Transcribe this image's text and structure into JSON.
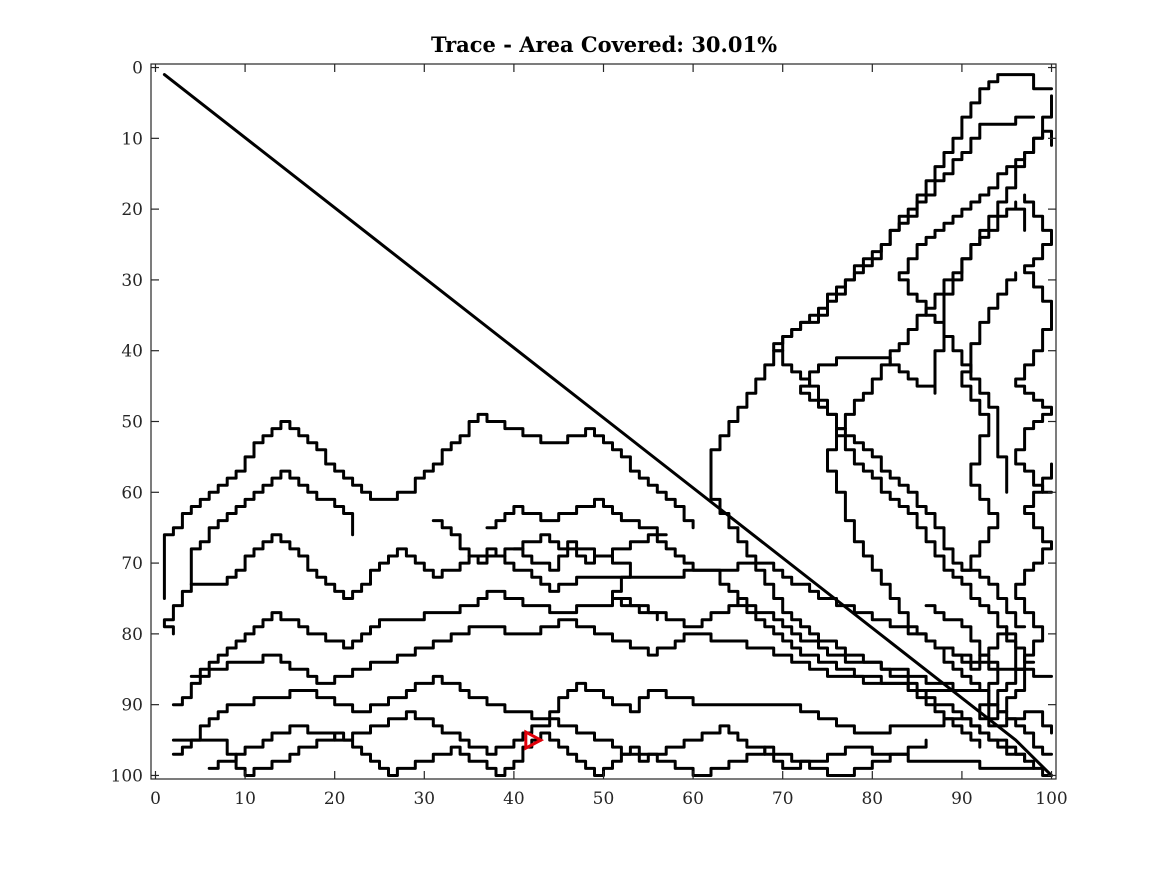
{
  "chart_data": {
    "type": "line",
    "title": "Trace - Area Covered: 30.01%",
    "xlabel": "",
    "ylabel": "",
    "xlim": [
      -0.5,
      100.5
    ],
    "ylim": [
      -0.5,
      100.5
    ],
    "y_reversed": true,
    "grid": false,
    "x_ticks": [
      0,
      10,
      20,
      30,
      40,
      50,
      60,
      70,
      80,
      90,
      100
    ],
    "y_ticks": [
      0,
      10,
      20,
      30,
      40,
      50,
      60,
      70,
      80,
      90,
      100
    ],
    "colors": {
      "trace": "#000000",
      "marker": "#e0000a",
      "axis": "#262626"
    },
    "series": [
      {
        "style": "trace",
        "x": [
          1,
          96,
          100
        ],
        "y": [
          1,
          95,
          100
        ]
      },
      {
        "style": "trace",
        "x": [
          100,
          92,
          85,
          74,
          70,
          62,
          62,
          70,
          80,
          88,
          92,
          94,
          97,
          98,
          100
        ],
        "y": [
          100,
          93,
          87,
          80,
          76,
          60,
          54,
          38,
          27,
          13,
          3,
          1,
          1,
          3,
          3
        ]
      },
      {
        "style": "trace",
        "x": [
          100,
          96,
          90,
          85,
          79,
          75,
          76,
          86,
          93,
          99,
          100
        ],
        "y": [
          97,
          92,
          85,
          79,
          68,
          55,
          51,
          34,
          22,
          8,
          4
        ]
      },
      {
        "style": "trace",
        "x": [
          98,
          93,
          88,
          84,
          78,
          74,
          70,
          69,
          71,
          74,
          79,
          84,
          90,
          92,
          98
        ],
        "y": [
          84,
          76,
          70,
          62,
          55,
          45,
          41,
          39,
          37,
          35,
          27,
          21,
          12,
          8,
          7
        ]
      },
      {
        "style": "trace",
        "x": [
          97,
          93,
          89,
          87,
          83,
          79,
          72,
          73,
          76,
          81,
          84,
          87,
          88,
          91,
          96,
          97
        ],
        "y": [
          79,
          72,
          69,
          63,
          58,
          53,
          45,
          43,
          41,
          41,
          44,
          46,
          33,
          25,
          19,
          23
        ]
      },
      {
        "style": "trace",
        "x": [
          95,
          94,
          90,
          87,
          83,
          86,
          91,
          96,
          99,
          100
        ],
        "y": [
          60,
          49,
          41,
          35,
          29,
          24,
          19,
          13,
          9,
          11
        ]
      },
      {
        "style": "trace",
        "x": [
          100,
          96,
          97,
          100,
          96,
          99,
          100,
          97,
          100,
          97
        ],
        "y": [
          60,
          55,
          51,
          48,
          44,
          39,
          33,
          28,
          24,
          18
        ]
      },
      {
        "style": "trace",
        "x": [
          90,
          94,
          91,
          93,
          90,
          92,
          96
        ],
        "y": [
          71,
          64,
          57,
          50,
          44,
          36,
          29
        ]
      },
      {
        "style": "trace",
        "x": [
          1,
          1,
          4,
          9,
          12,
          14,
          24,
          28,
          36,
          44,
          48,
          58,
          60
        ],
        "y": [
          75,
          66,
          62,
          57,
          52,
          50,
          61,
          60,
          49,
          53,
          51,
          62,
          65
        ]
      },
      {
        "style": "trace",
        "x": [
          4,
          4,
          8,
          11,
          14,
          22,
          22
        ],
        "y": [
          73,
          68,
          63,
          60,
          57,
          64,
          66
        ]
      },
      {
        "style": "trace",
        "x": [
          2,
          1,
          4,
          7,
          13,
          21,
          27,
          31,
          37,
          44,
          47,
          55,
          62,
          66,
          71,
          76,
          85,
          93
        ],
        "y": [
          80,
          78,
          73,
          73,
          66,
          75,
          68,
          72,
          68,
          74,
          72,
          72,
          71,
          77,
          82,
          85,
          88,
          88
        ]
      },
      {
        "style": "trace",
        "x": [
          4,
          10,
          13,
          21,
          25,
          33,
          37,
          45,
          52,
          60,
          65,
          75,
          79,
          90
        ],
        "y": [
          86,
          80,
          77,
          82,
          78,
          77,
          74,
          77,
          75,
          79,
          75,
          83,
          84,
          88
        ]
      },
      {
        "style": "trace",
        "x": [
          2,
          6,
          13,
          18,
          25,
          36,
          41,
          46,
          55,
          59,
          68,
          75,
          83,
          92
        ],
        "y": [
          90,
          85,
          83,
          87,
          84,
          79,
          80,
          78,
          83,
          80,
          82,
          86,
          87,
          96
        ]
      },
      {
        "style": "trace",
        "x": [
          2,
          8,
          16,
          23,
          31,
          37,
          43,
          47,
          53,
          55,
          61,
          70,
          79,
          90,
          97
        ],
        "y": [
          97,
          90,
          88,
          91,
          86,
          90,
          92,
          87,
          91,
          88,
          90,
          90,
          94,
          92,
          98
        ]
      },
      {
        "style": "trace",
        "x": [
          6,
          15,
          21,
          28,
          37,
          44,
          50,
          54,
          63,
          70,
          78,
          86,
          98
        ],
        "y": [
          99,
          93,
          95,
          91,
          97,
          92,
          95,
          98,
          93,
          99,
          96,
          98,
          99
        ]
      },
      {
        "style": "trace",
        "x": [
          31,
          36,
          43,
          48,
          55,
          60,
          68,
          74,
          83,
          91,
          100
        ],
        "y": [
          64,
          70,
          66,
          70,
          66,
          71,
          70,
          75,
          79,
          84,
          86
        ]
      },
      {
        "style": "trace",
        "x": [
          37,
          40,
          44,
          49,
          51,
          57
        ],
        "y": [
          65,
          62,
          64,
          61,
          63,
          66
        ]
      },
      {
        "style": "trace",
        "x": [
          40,
          44,
          46,
          53,
          51,
          56
        ],
        "y": [
          68,
          71,
          67,
          71,
          75,
          78
        ]
      },
      {
        "style": "trace",
        "x": [
          2,
          7,
          10,
          20,
          26,
          33,
          38,
          43,
          49,
          53,
          60,
          68,
          76,
          86
        ],
        "y": [
          95,
          95,
          100,
          94,
          100,
          96,
          100,
          94,
          100,
          96,
          100,
          96,
          100,
          95
        ]
      },
      {
        "style": "trace",
        "x": [
          86,
          90,
          94,
          92,
          99,
          96,
          100,
          97,
          100
        ],
        "y": [
          76,
          79,
          86,
          92,
          80,
          73,
          67,
          62,
          56
        ]
      },
      {
        "style": "trace",
        "x": [
          88,
          91,
          95,
          97,
          93,
          98,
          100
        ],
        "y": [
          82,
          85,
          79,
          88,
          93,
          91,
          94
        ]
      }
    ],
    "marker": {
      "shape": "triangle-right",
      "x": 42,
      "y": 95
    }
  }
}
